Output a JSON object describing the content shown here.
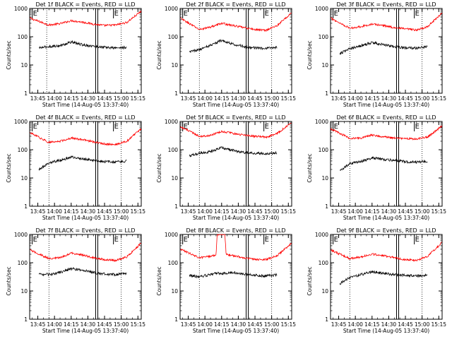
{
  "chart_data": [
    {
      "type": "line",
      "title": "Det 1f BLACK = Events, RED = LLD",
      "xlabel": "Start Time (14-Aug-05 13:37:40)",
      "ylabel": "Counts/sec",
      "x_ticks": [
        "13:45",
        "14:00",
        "14:15",
        "14:30",
        "14:45",
        "15:00",
        "15:15"
      ],
      "y_ticks": [
        "1",
        "10",
        "100",
        "1000"
      ],
      "y_scale": "log",
      "ylim": [
        1,
        1000
      ],
      "xlim": [
        "13:37:40",
        "15:18:00"
      ],
      "markers": [
        {
          "label": "E",
          "time": "13:40:00",
          "style": "solid"
        },
        {
          "label": "",
          "time": "13:53:00",
          "style": "dotted"
        },
        {
          "label": "",
          "time": "14:38:00",
          "style": "double"
        },
        {
          "label": "E",
          "time": "14:53:00",
          "style": "solid"
        },
        {
          "label": "",
          "time": "15:00:00",
          "style": "dotted"
        }
      ],
      "series": [
        {
          "color": "#ff0000",
          "x": [
            "13:38",
            "13:55",
            "14:05",
            "14:15",
            "14:25",
            "14:35",
            "14:45",
            "14:55",
            "15:05",
            "15:18"
          ],
          "values": [
            450,
            260,
            290,
            370,
            330,
            280,
            250,
            260,
            320,
            800
          ]
        },
        {
          "color": "#000000",
          "x": [
            "13:46",
            "13:55",
            "14:05",
            "14:15",
            "14:25",
            "14:35",
            "14:45",
            "14:55",
            "15:05"
          ],
          "values": [
            40,
            45,
            48,
            65,
            52,
            46,
            42,
            40,
            42
          ]
        }
      ]
    },
    {
      "type": "line",
      "title": "Det 2f BLACK = Events, RED = LLD",
      "xlabel": "Start Time (14-Aug-05 13:37:40)",
      "ylabel": "Counts/sec",
      "x_ticks": [
        "13:45",
        "14:00",
        "14:15",
        "14:30",
        "14:45",
        "15:00",
        "15:15"
      ],
      "y_ticks": [
        "1",
        "10",
        "100",
        "1000"
      ],
      "y_scale": "log",
      "ylim": [
        1,
        1000
      ],
      "xlim": [
        "13:37:40",
        "15:18:00"
      ],
      "markers": [
        {
          "label": "E",
          "time": "13:40:00",
          "style": "solid"
        },
        {
          "label": "",
          "time": "13:55:00",
          "style": "dotted"
        },
        {
          "label": "",
          "time": "14:38:00",
          "style": "double"
        },
        {
          "label": "E",
          "time": "14:53:00",
          "style": "solid"
        },
        {
          "label": "",
          "time": "15:00:00",
          "style": "dotted"
        }
      ],
      "series": [
        {
          "color": "#ff0000",
          "x": [
            "13:38",
            "13:55",
            "14:05",
            "14:15",
            "14:25",
            "14:35",
            "14:45",
            "14:55",
            "15:05",
            "15:18"
          ],
          "values": [
            450,
            180,
            220,
            300,
            250,
            210,
            180,
            170,
            250,
            700
          ]
        },
        {
          "color": "#000000",
          "x": [
            "13:46",
            "13:55",
            "14:05",
            "14:15",
            "14:25",
            "14:35",
            "14:45",
            "14:55",
            "15:05"
          ],
          "values": [
            30,
            35,
            50,
            75,
            55,
            45,
            40,
            38,
            42
          ]
        }
      ]
    },
    {
      "type": "line",
      "title": "Det 3f BLACK = Events, RED = LLD",
      "xlabel": "Start Time (14-Aug-05 13:37:40)",
      "ylabel": "Counts/sec",
      "x_ticks": [
        "13:45",
        "14:00",
        "14:15",
        "14:30",
        "14:45",
        "15:00",
        "15:15"
      ],
      "y_ticks": [
        "1",
        "10",
        "100",
        "1000"
      ],
      "y_scale": "log",
      "ylim": [
        1,
        1000
      ],
      "xlim": [
        "13:37:40",
        "15:18:00"
      ],
      "markers": [
        {
          "label": "E",
          "time": "13:40:00",
          "style": "solid"
        },
        {
          "label": "",
          "time": "13:55:00",
          "style": "dotted"
        },
        {
          "label": "",
          "time": "14:38:00",
          "style": "double"
        },
        {
          "label": "E",
          "time": "14:53:00",
          "style": "solid"
        },
        {
          "label": "",
          "time": "15:00:00",
          "style": "dotted"
        }
      ],
      "series": [
        {
          "color": "#ff0000",
          "x": [
            "13:38",
            "13:55",
            "14:05",
            "14:15",
            "14:25",
            "14:35",
            "14:45",
            "14:55",
            "15:05",
            "15:18"
          ],
          "values": [
            450,
            200,
            230,
            280,
            250,
            210,
            190,
            170,
            230,
            700
          ]
        },
        {
          "color": "#000000",
          "x": [
            "13:46",
            "13:55",
            "14:05",
            "14:15",
            "14:25",
            "14:35",
            "14:45",
            "14:55",
            "15:05"
          ],
          "values": [
            25,
            38,
            48,
            62,
            52,
            45,
            40,
            40,
            45
          ]
        }
      ]
    },
    {
      "type": "line",
      "title": "Det 4f BLACK = Events, RED = LLD",
      "xlabel": "Start Time (14-Aug-05 13:37:40)",
      "ylabel": "Counts/sec",
      "x_ticks": [
        "13:45",
        "14:00",
        "14:15",
        "14:30",
        "14:45",
        "15:00",
        "15:15"
      ],
      "y_ticks": [
        "1",
        "10",
        "100",
        "1000"
      ],
      "y_scale": "log",
      "ylim": [
        1,
        1000
      ],
      "xlim": [
        "13:37:40",
        "15:18:00"
      ],
      "markers": [
        {
          "label": "E",
          "time": "13:40:00",
          "style": "solid"
        },
        {
          "label": "",
          "time": "13:55:00",
          "style": "dotted"
        },
        {
          "label": "",
          "time": "14:38:00",
          "style": "double"
        },
        {
          "label": "E",
          "time": "14:53:00",
          "style": "solid"
        },
        {
          "label": "",
          "time": "15:00:00",
          "style": "dotted"
        }
      ],
      "series": [
        {
          "color": "#ff0000",
          "x": [
            "13:38",
            "13:55",
            "14:05",
            "14:15",
            "14:25",
            "14:35",
            "14:45",
            "14:55",
            "15:05",
            "15:18"
          ],
          "values": [
            400,
            180,
            200,
            260,
            230,
            190,
            160,
            150,
            200,
            550
          ]
        },
        {
          "color": "#000000",
          "x": [
            "13:46",
            "13:55",
            "14:05",
            "14:15",
            "14:25",
            "14:35",
            "14:45",
            "14:55",
            "15:05"
          ],
          "values": [
            20,
            35,
            42,
            55,
            48,
            42,
            38,
            36,
            40
          ]
        }
      ]
    },
    {
      "type": "line",
      "title": "Det 5f BLACK = Events, RED = LLD",
      "xlabel": "Start Time (14-Aug-05 13:37:40)",
      "ylabel": "Counts/sec",
      "x_ticks": [
        "13:45",
        "14:00",
        "14:15",
        "14:30",
        "14:45",
        "15:00",
        "15:15"
      ],
      "y_ticks": [
        "1",
        "10",
        "100",
        "1000"
      ],
      "y_scale": "log",
      "ylim": [
        1,
        1000
      ],
      "xlim": [
        "13:37:40",
        "15:18:00"
      ],
      "markers": [
        {
          "label": "E",
          "time": "13:40:00",
          "style": "solid"
        },
        {
          "label": "",
          "time": "13:55:00",
          "style": "dotted"
        },
        {
          "label": "",
          "time": "14:38:00",
          "style": "double"
        },
        {
          "label": "E",
          "time": "14:53:00",
          "style": "solid"
        },
        {
          "label": "",
          "time": "15:00:00",
          "style": "dotted"
        }
      ],
      "series": [
        {
          "color": "#ff0000",
          "x": [
            "13:38",
            "13:55",
            "14:05",
            "14:15",
            "14:25",
            "14:35",
            "14:45",
            "14:55",
            "15:05",
            "15:18"
          ],
          "values": [
            650,
            300,
            320,
            450,
            380,
            330,
            300,
            280,
            380,
            900
          ]
        },
        {
          "color": "#000000",
          "x": [
            "13:46",
            "13:55",
            "14:05",
            "14:15",
            "14:25",
            "14:35",
            "14:45",
            "14:55",
            "15:05"
          ],
          "values": [
            60,
            75,
            85,
            120,
            95,
            80,
            75,
            72,
            78
          ]
        }
      ]
    },
    {
      "type": "line",
      "title": "Det 6f BLACK = Events, RED = LLD",
      "xlabel": "Start Time (14-Aug-05 13:37:40)",
      "ylabel": "Counts/sec",
      "x_ticks": [
        "13:45",
        "14:00",
        "14:15",
        "14:30",
        "14:45",
        "15:00",
        "15:15"
      ],
      "y_ticks": [
        "1",
        "10",
        "100",
        "1000"
      ],
      "y_scale": "log",
      "ylim": [
        1,
        1000
      ],
      "xlim": [
        "13:37:40",
        "15:18:00"
      ],
      "markers": [
        {
          "label": "E",
          "time": "13:40:00",
          "style": "solid"
        },
        {
          "label": "",
          "time": "13:55:00",
          "style": "dotted"
        },
        {
          "label": "",
          "time": "14:38:00",
          "style": "double"
        },
        {
          "label": "E",
          "time": "14:53:00",
          "style": "solid"
        },
        {
          "label": "",
          "time": "15:00:00",
          "style": "dotted"
        }
      ],
      "series": [
        {
          "color": "#ff0000",
          "x": [
            "13:38",
            "13:55",
            "14:05",
            "14:15",
            "14:25",
            "14:35",
            "14:45",
            "14:55",
            "15:05",
            "15:18"
          ],
          "values": [
            550,
            250,
            260,
            330,
            290,
            260,
            250,
            240,
            280,
            700
          ]
        },
        {
          "color": "#000000",
          "x": [
            "13:46",
            "13:55",
            "14:05",
            "14:15",
            "14:25",
            "14:35",
            "14:45",
            "14:55",
            "15:05"
          ],
          "values": [
            18,
            32,
            38,
            52,
            45,
            42,
            38,
            36,
            38
          ]
        }
      ]
    },
    {
      "type": "line",
      "title": "Det 7f BLACK = Events, RED = LLD",
      "xlabel": "Start Time (14-Aug-05 13:37:40)",
      "ylabel": "Counts/sec",
      "x_ticks": [
        "13:45",
        "14:00",
        "14:15",
        "14:30",
        "14:45",
        "15:00",
        "15:15"
      ],
      "y_ticks": [
        "1",
        "10",
        "100",
        "1000"
      ],
      "y_scale": "log",
      "ylim": [
        1,
        1000
      ],
      "xlim": [
        "13:37:40",
        "15:18:00"
      ],
      "markers": [
        {
          "label": "E",
          "time": "13:40:00",
          "style": "solid"
        },
        {
          "label": "",
          "time": "13:55:00",
          "style": "dotted"
        },
        {
          "label": "",
          "time": "14:38:00",
          "style": "double"
        },
        {
          "label": "E",
          "time": "14:53:00",
          "style": "solid"
        },
        {
          "label": "",
          "time": "15:00:00",
          "style": "dotted"
        }
      ],
      "series": [
        {
          "color": "#ff0000",
          "x": [
            "13:38",
            "13:55",
            "14:05",
            "14:15",
            "14:25",
            "14:35",
            "14:45",
            "14:55",
            "15:05",
            "15:18"
          ],
          "values": [
            280,
            140,
            150,
            220,
            190,
            150,
            130,
            120,
            160,
            500
          ]
        },
        {
          "color": "#000000",
          "x": [
            "13:46",
            "13:55",
            "14:05",
            "14:15",
            "14:25",
            "14:35",
            "14:45",
            "14:55",
            "15:05"
          ],
          "values": [
            40,
            38,
            45,
            62,
            55,
            45,
            40,
            38,
            42
          ]
        }
      ]
    },
    {
      "type": "line",
      "title": "Det 8f BLACK = Events, RED = LLD",
      "xlabel": "Start Time (14-Aug-05 13:37:40)",
      "ylabel": "Counts/sec",
      "x_ticks": [
        "13:45",
        "14:00",
        "14:15",
        "14:30",
        "14:45",
        "15:00",
        "15:15"
      ],
      "y_ticks": [
        "1",
        "10",
        "100",
        "1000"
      ],
      "y_scale": "log",
      "ylim": [
        1,
        1000
      ],
      "xlim": [
        "13:37:40",
        "15:18:00"
      ],
      "markers": [
        {
          "label": "E",
          "time": "13:40:00",
          "style": "solid"
        },
        {
          "label": "",
          "time": "13:55:00",
          "style": "dotted"
        },
        {
          "label": "",
          "time": "14:38:00",
          "style": "double"
        },
        {
          "label": "E",
          "time": "14:53:00",
          "style": "solid"
        },
        {
          "label": "",
          "time": "15:00:00",
          "style": "dotted"
        }
      ],
      "series": [
        {
          "color": "#ff0000",
          "x": [
            "13:38",
            "13:55",
            "14:05",
            "14:10",
            "14:11",
            "14:18",
            "14:19",
            "14:25",
            "14:35",
            "14:45",
            "14:55",
            "15:05",
            "15:18"
          ],
          "values": [
            300,
            150,
            170,
            190,
            1000,
            1000,
            200,
            180,
            150,
            130,
            130,
            180,
            500
          ]
        },
        {
          "color": "#000000",
          "x": [
            "13:46",
            "13:55",
            "14:05",
            "14:10",
            "14:19",
            "14:25",
            "14:35",
            "14:45",
            "14:55",
            "15:05"
          ],
          "values": [
            35,
            32,
            38,
            42,
            42,
            45,
            40,
            36,
            34,
            38
          ]
        }
      ]
    },
    {
      "type": "line",
      "title": "Det 9f BLACK = Events, RED = LLD",
      "xlabel": "Start Time (14-Aug-05 13:37:40)",
      "ylabel": "Counts/sec",
      "x_ticks": [
        "13:45",
        "14:00",
        "14:15",
        "14:30",
        "14:45",
        "15:00",
        "15:15"
      ],
      "y_ticks": [
        "1",
        "10",
        "100",
        "1000"
      ],
      "y_scale": "log",
      "ylim": [
        1,
        1000
      ],
      "xlim": [
        "13:37:40",
        "15:18:00"
      ],
      "markers": [
        {
          "label": "E",
          "time": "13:40:00",
          "style": "solid"
        },
        {
          "label": "",
          "time": "13:55:00",
          "style": "dotted"
        },
        {
          "label": "",
          "time": "14:38:00",
          "style": "double"
        },
        {
          "label": "E",
          "time": "14:53:00",
          "style": "solid"
        },
        {
          "label": "",
          "time": "15:00:00",
          "style": "dotted"
        }
      ],
      "series": [
        {
          "color": "#ff0000",
          "x": [
            "13:38",
            "13:55",
            "14:05",
            "14:15",
            "14:25",
            "14:35",
            "14:45",
            "14:55",
            "15:05",
            "15:18"
          ],
          "values": [
            280,
            140,
            160,
            200,
            180,
            150,
            130,
            120,
            170,
            520
          ]
        },
        {
          "color": "#000000",
          "x": [
            "13:46",
            "13:55",
            "14:05",
            "14:15",
            "14:25",
            "14:35",
            "14:45",
            "14:55",
            "15:05"
          ],
          "values": [
            18,
            30,
            38,
            48,
            42,
            38,
            36,
            34,
            36
          ]
        }
      ]
    }
  ]
}
